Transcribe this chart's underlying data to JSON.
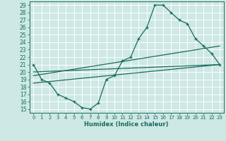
{
  "xlabel": "Humidex (Indice chaleur)",
  "background_color": "#cde8e5",
  "grid_color": "#b0d5d0",
  "line_color": "#1a6b5e",
  "xlim": [
    -0.5,
    23.5
  ],
  "ylim": [
    14.5,
    29.5
  ],
  "xticks": [
    0,
    1,
    2,
    3,
    4,
    5,
    6,
    7,
    8,
    9,
    10,
    11,
    12,
    13,
    14,
    15,
    16,
    17,
    18,
    19,
    20,
    21,
    22,
    23
  ],
  "yticks": [
    15,
    16,
    17,
    18,
    19,
    20,
    21,
    22,
    23,
    24,
    25,
    26,
    27,
    28,
    29
  ],
  "line1_x": [
    0,
    1,
    2,
    3,
    4,
    5,
    6,
    7,
    8,
    9,
    10,
    11,
    12,
    13,
    14,
    15,
    16,
    17,
    18,
    19,
    20,
    21,
    22,
    23
  ],
  "line1_y": [
    21,
    19,
    18.5,
    17,
    16.5,
    16,
    15.2,
    15,
    15.8,
    19,
    19.5,
    21.5,
    22,
    24.5,
    26,
    29,
    29,
    28,
    27,
    26.5,
    24.5,
    23.5,
    22.5,
    21
  ],
  "line2_x": [
    0,
    23
  ],
  "line2_y": [
    20,
    21
  ],
  "line3_x": [
    0,
    23
  ],
  "line3_y": [
    19.5,
    23.5
  ],
  "line4_x": [
    0,
    23
  ],
  "line4_y": [
    18.5,
    21.0
  ]
}
